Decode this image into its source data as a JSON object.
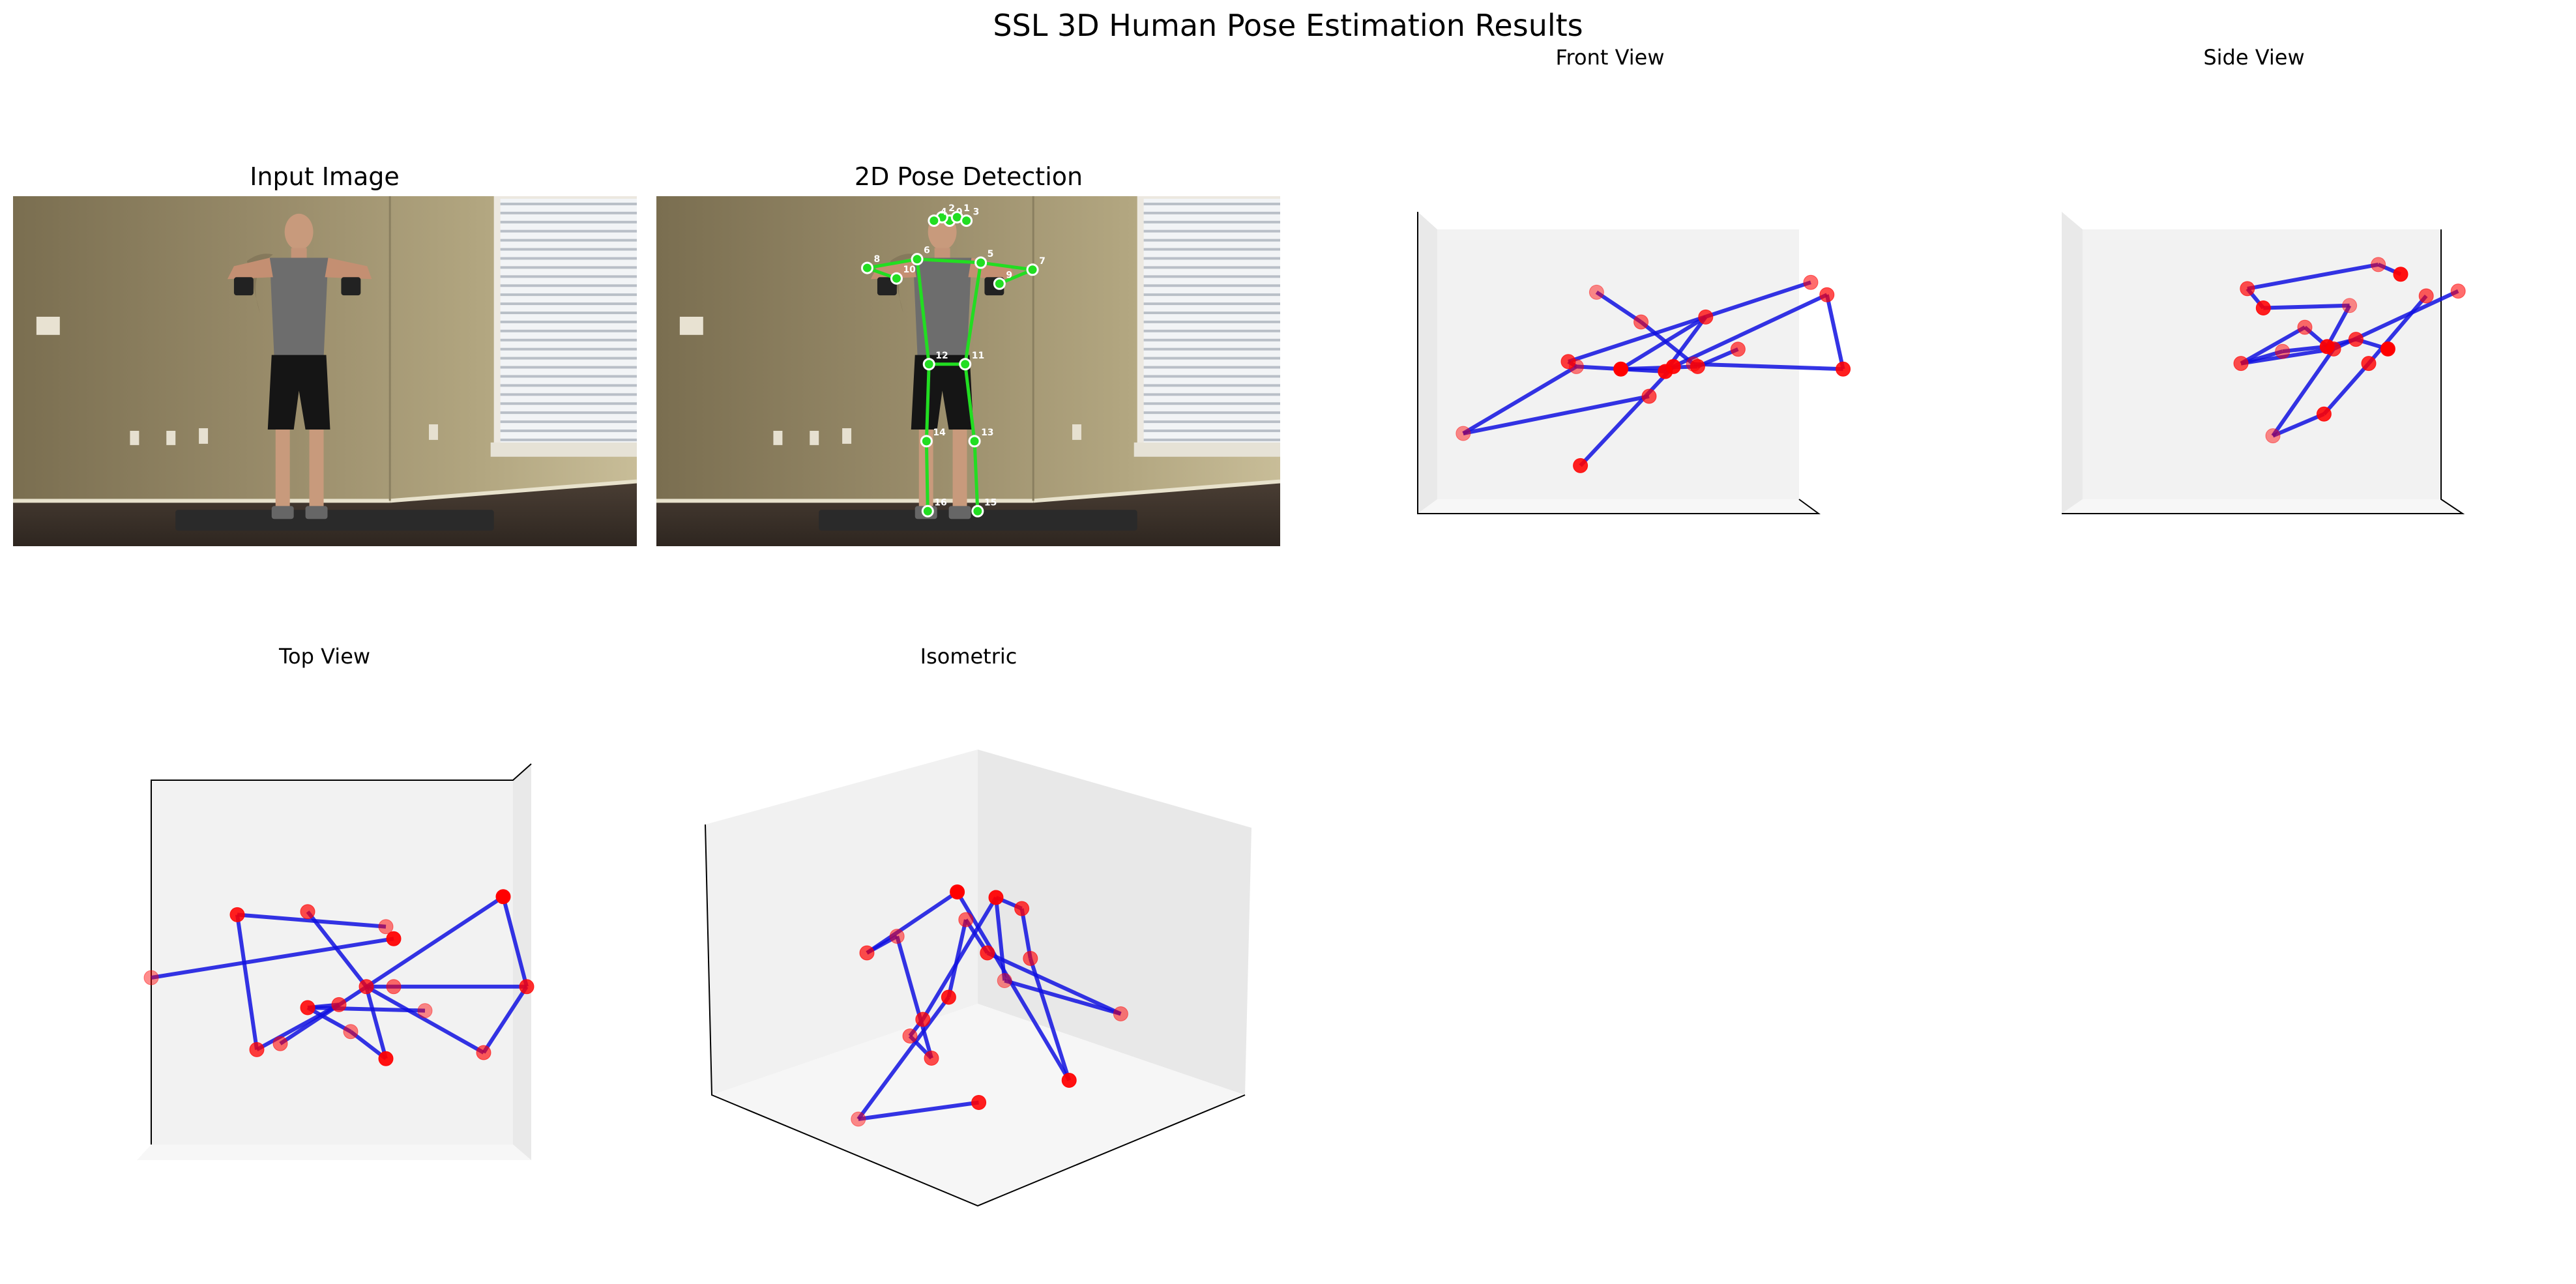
{
  "figure": {
    "title": "SSL 3D Human Pose Estimation Results"
  },
  "panels": {
    "input": {
      "title": "Input Image"
    },
    "pose2d": {
      "title": "2D Pose Detection"
    },
    "front": {
      "title": "Front View"
    },
    "side": {
      "title": "Side View"
    },
    "top": {
      "title": "Top View"
    },
    "iso": {
      "title": "Isometric"
    }
  },
  "colors": {
    "joint": "#ff0000",
    "bone3d": "#1010e0",
    "bone2d": "#22dd22",
    "keypoint_fill": "#22dd22",
    "pane": "#f2f2f2"
  },
  "chart_data": [
    {
      "type": "scatter",
      "panel": "2D Pose Detection",
      "points": [
        {
          "id": "0",
          "u": 0.47,
          "v": 0.07
        },
        {
          "id": "1",
          "u": 0.482,
          "v": 0.06
        },
        {
          "id": "2",
          "u": 0.458,
          "v": 0.06
        },
        {
          "id": "3",
          "u": 0.497,
          "v": 0.07
        },
        {
          "id": "4",
          "u": 0.445,
          "v": 0.07
        },
        {
          "id": "5",
          "u": 0.52,
          "v": 0.19
        },
        {
          "id": "6",
          "u": 0.418,
          "v": 0.18
        },
        {
          "id": "7",
          "u": 0.603,
          "v": 0.21
        },
        {
          "id": "8",
          "u": 0.338,
          "v": 0.205
        },
        {
          "id": "9",
          "u": 0.55,
          "v": 0.25
        },
        {
          "id": "10",
          "u": 0.385,
          "v": 0.235
        },
        {
          "id": "11",
          "u": 0.495,
          "v": 0.48
        },
        {
          "id": "12",
          "u": 0.437,
          "v": 0.48
        },
        {
          "id": "13",
          "u": 0.51,
          "v": 0.7
        },
        {
          "id": "14",
          "u": 0.433,
          "v": 0.7
        },
        {
          "id": "15",
          "u": 0.515,
          "v": 0.9
        },
        {
          "id": "16",
          "u": 0.435,
          "v": 0.9
        }
      ],
      "bones": [
        [
          5,
          6
        ],
        [
          5,
          7
        ],
        [
          7,
          9
        ],
        [
          6,
          8
        ],
        [
          8,
          10
        ],
        [
          5,
          11
        ],
        [
          6,
          12
        ],
        [
          11,
          12
        ],
        [
          11,
          13
        ],
        [
          13,
          15
        ],
        [
          12,
          14
        ],
        [
          14,
          16
        ]
      ]
    },
    {
      "type": "scatter",
      "panel": "Front View",
      "points": [
        [
          0.04,
          0.75
        ],
        [
          0.33,
          0.88
        ],
        [
          0.5,
          0.6
        ],
        [
          0.32,
          0.48
        ],
        [
          0.54,
          0.5
        ],
        [
          0.64,
          0.28
        ],
        [
          0.48,
          0.3
        ],
        [
          0.43,
          0.49
        ],
        [
          0.62,
          0.48
        ],
        [
          0.72,
          0.41
        ],
        [
          0.37,
          0.18
        ],
        [
          0.98,
          0.49
        ],
        [
          0.94,
          0.19
        ],
        [
          0.61,
          0.47
        ],
        [
          0.56,
          0.48
        ],
        [
          0.3,
          0.46
        ],
        [
          0.9,
          0.14
        ]
      ],
      "bones": [
        [
          0,
          2
        ],
        [
          0,
          3
        ],
        [
          3,
          4
        ],
        [
          4,
          5
        ],
        [
          5,
          7
        ],
        [
          7,
          8
        ],
        [
          8,
          9
        ],
        [
          10,
          6
        ],
        [
          6,
          13
        ],
        [
          13,
          11
        ],
        [
          11,
          12
        ],
        [
          12,
          14
        ],
        [
          14,
          1
        ],
        [
          3,
          15
        ],
        [
          15,
          16
        ]
      ]
    },
    {
      "type": "scatter",
      "panel": "Side View",
      "points": [
        [
          0.3,
          0.78
        ],
        [
          0.46,
          0.69
        ],
        [
          0.2,
          0.48
        ],
        [
          0.33,
          0.43
        ],
        [
          0.47,
          0.41
        ],
        [
          0.56,
          0.38
        ],
        [
          0.4,
          0.33
        ],
        [
          0.66,
          0.42
        ],
        [
          0.6,
          0.48
        ],
        [
          0.78,
          0.2
        ],
        [
          0.54,
          0.24
        ],
        [
          0.27,
          0.25
        ],
        [
          0.22,
          0.17
        ],
        [
          0.63,
          0.07
        ],
        [
          0.7,
          0.11
        ],
        [
          0.49,
          0.42
        ],
        [
          0.88,
          0.18
        ]
      ],
      "bones": [
        [
          0,
          1
        ],
        [
          1,
          8
        ],
        [
          8,
          9
        ],
        [
          2,
          3
        ],
        [
          3,
          4
        ],
        [
          4,
          5
        ],
        [
          5,
          7
        ],
        [
          2,
          6
        ],
        [
          6,
          4
        ],
        [
          4,
          10
        ],
        [
          10,
          11
        ],
        [
          11,
          12
        ],
        [
          12,
          13
        ],
        [
          13,
          14
        ],
        [
          15,
          16
        ],
        [
          15,
          0
        ],
        [
          2,
          15
        ]
      ]
    },
    {
      "type": "scatter",
      "panel": "Top View",
      "points": [
        [
          0.02,
          0.5
        ],
        [
          0.24,
          0.29
        ],
        [
          0.42,
          0.28
        ],
        [
          0.62,
          0.33
        ],
        [
          0.64,
          0.37
        ],
        [
          0.57,
          0.53
        ],
        [
          0.64,
          0.53
        ],
        [
          0.92,
          0.23
        ],
        [
          0.98,
          0.53
        ],
        [
          0.87,
          0.75
        ],
        [
          0.72,
          0.61
        ],
        [
          0.42,
          0.6
        ],
        [
          0.5,
          0.59
        ],
        [
          0.53,
          0.68
        ],
        [
          0.62,
          0.77
        ],
        [
          0.29,
          0.74
        ],
        [
          0.35,
          0.72
        ]
      ],
      "bones": [
        [
          0,
          4
        ],
        [
          1,
          3
        ],
        [
          1,
          15
        ],
        [
          2,
          5
        ],
        [
          5,
          6
        ],
        [
          6,
          8
        ],
        [
          8,
          7
        ],
        [
          7,
          16
        ],
        [
          11,
          10
        ],
        [
          11,
          12
        ],
        [
          12,
          15
        ],
        [
          5,
          14
        ],
        [
          14,
          13
        ],
        [
          13,
          11
        ],
        [
          5,
          9
        ],
        [
          9,
          8
        ]
      ]
    },
    {
      "type": "scatter",
      "panel": "Isometric",
      "points": [
        [
          0.23,
          0.82
        ],
        [
          0.51,
          0.79
        ],
        [
          0.25,
          0.52
        ],
        [
          0.32,
          0.49
        ],
        [
          0.55,
          0.42
        ],
        [
          0.61,
          0.44
        ],
        [
          0.48,
          0.46
        ],
        [
          0.46,
          0.41
        ],
        [
          0.53,
          0.52
        ],
        [
          0.63,
          0.53
        ],
        [
          0.57,
          0.57
        ],
        [
          0.44,
          0.6
        ],
        [
          0.4,
          0.71
        ],
        [
          0.84,
          0.63
        ],
        [
          0.72,
          0.75
        ],
        [
          0.38,
          0.64
        ],
        [
          0.35,
          0.67
        ]
      ],
      "bones": [
        [
          0,
          1
        ],
        [
          0,
          11
        ],
        [
          11,
          6
        ],
        [
          6,
          8
        ],
        [
          8,
          13
        ],
        [
          13,
          10
        ],
        [
          10,
          4
        ],
        [
          4,
          5
        ],
        [
          5,
          9
        ],
        [
          9,
          14
        ],
        [
          14,
          7
        ],
        [
          7,
          2
        ],
        [
          2,
          3
        ],
        [
          3,
          12
        ],
        [
          12,
          16
        ],
        [
          16,
          15
        ],
        [
          15,
          4
        ]
      ]
    }
  ]
}
